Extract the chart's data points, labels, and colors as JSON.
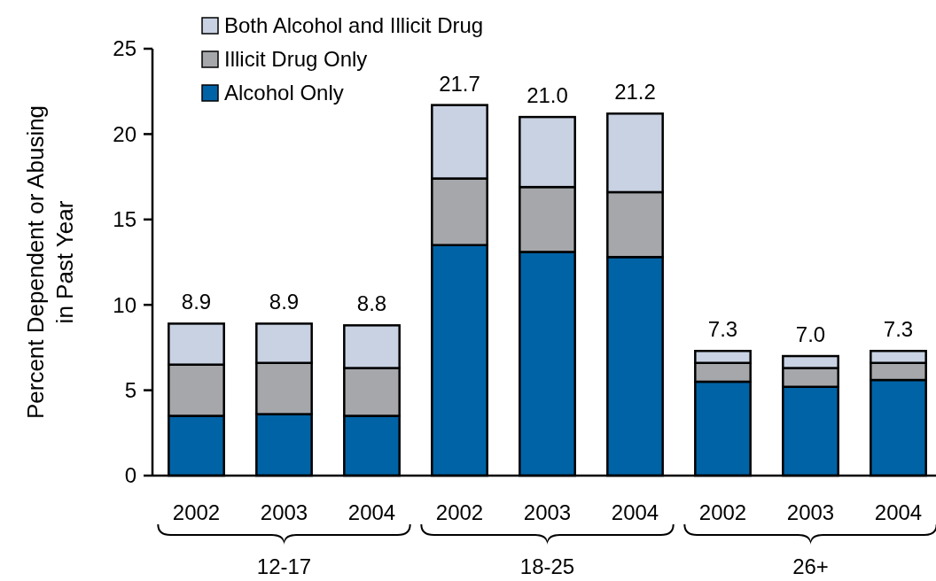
{
  "chart_data": {
    "type": "bar",
    "stacked": true,
    "ylabel": "Percent Dependent or Abusing in Past Year",
    "categories": [
      "2002",
      "2003",
      "2004",
      "2002",
      "2003",
      "2004",
      "2002",
      "2003",
      "2004"
    ],
    "series": [
      {
        "name": "Alcohol Only",
        "color": "#0063a6",
        "values": [
          3.5,
          3.6,
          3.5,
          13.5,
          13.1,
          12.8,
          5.5,
          5.2,
          5.6
        ]
      },
      {
        "name": "Illicit Drug Only",
        "color": "#a6a7ab",
        "values": [
          3.0,
          3.0,
          2.8,
          3.9,
          3.8,
          3.8,
          1.1,
          1.1,
          1.0
        ]
      },
      {
        "name": "Both Alcohol and Illicit Drug",
        "color": "#c9d2e3",
        "values": [
          2.4,
          2.3,
          2.5,
          4.3,
          4.1,
          4.6,
          0.7,
          0.7,
          0.7
        ]
      }
    ],
    "totals": [
      "8.9",
      "8.9",
      "8.8",
      "21.7",
      "21.0",
      "21.2",
      "7.3",
      "7.0",
      "7.3"
    ],
    "annotations": [
      "12-17",
      "18-25",
      "26+"
    ],
    "ylim": [
      0,
      25
    ],
    "yticks": [
      0,
      5,
      10,
      15,
      20,
      25
    ],
    "grid": false,
    "legend": "top left"
  }
}
